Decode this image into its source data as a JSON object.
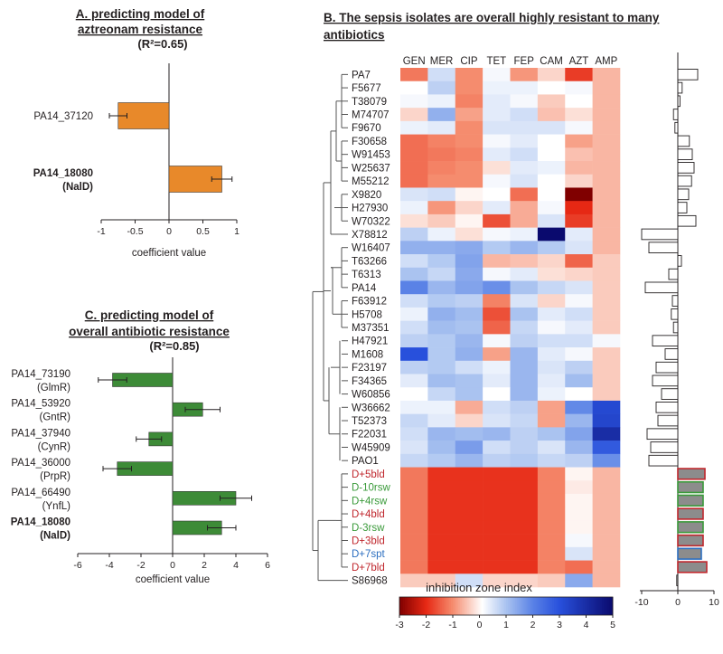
{
  "panel_a": {
    "title_line1": "A. predicting model of",
    "title_line2": "aztreonam resistance",
    "r2": "(R²=0.65)",
    "xlabel": "coefficient value"
  },
  "panel_b": {
    "title_line1": "B. The sepsis isolates are overall highly resistant to many",
    "title_line2": "antibiotics",
    "legend_title": "inhibition zone index"
  },
  "panel_c": {
    "title_line1": "C. predicting model of",
    "title_line2": "overall antibiotic resistance",
    "r2": "(R²=0.85)",
    "xlabel": "coefficient value"
  },
  "chart_data": [
    {
      "id": "A",
      "type": "bar",
      "orientation": "horizontal",
      "title": "A. predicting model of aztreonam resistance (R²=0.65)",
      "xlabel": "coefficient value",
      "xlim": [
        -1,
        1
      ],
      "xticks": [
        "-1",
        "-0.5",
        "0",
        "0.5",
        "1"
      ],
      "bar_color": "#e8892a",
      "categories": [
        {
          "name": "PA14_37120",
          "protein": "",
          "bold": false
        },
        {
          "name": "PA14_18080",
          "protein": "(NalD)",
          "bold": true
        }
      ],
      "values": [
        -0.75,
        0.78
      ],
      "errors": [
        0.13,
        0.15
      ]
    },
    {
      "id": "C",
      "type": "bar",
      "orientation": "horizontal",
      "title": "C. predicting model of overall antibiotic resistance (R²=0.85)",
      "xlabel": "coefficient value",
      "xlim": [
        -6,
        6
      ],
      "xticks": [
        "-6",
        "-4",
        "-2",
        "0",
        "2",
        "4",
        "6"
      ],
      "bar_color": "#3d8b37",
      "categories": [
        {
          "name": "PA14_73190",
          "protein": "(GlmR)",
          "bold": false
        },
        {
          "name": "PA14_53920",
          "protein": "(GntR)",
          "bold": false
        },
        {
          "name": "PA14_37940",
          "protein": "(CynR)",
          "bold": false
        },
        {
          "name": "PA14_36000",
          "protein": "(PrpR)",
          "bold": false
        },
        {
          "name": "PA14_66490",
          "protein": "(YnfL)",
          "bold": false
        },
        {
          "name": "PA14_18080",
          "protein": "(NalD)",
          "bold": true
        }
      ],
      "values": [
        -3.8,
        1.9,
        -1.5,
        -3.5,
        4.0,
        3.1
      ],
      "errors": [
        0.9,
        1.1,
        0.8,
        0.9,
        1.0,
        0.9
      ]
    },
    {
      "id": "B",
      "type": "heatmap",
      "title": "B. The sepsis isolates are overall highly resistant to many antibiotics",
      "columns": [
        "GEN",
        "MER",
        "CIP",
        "TET",
        "FEP",
        "CAM",
        "AZT",
        "AMP"
      ],
      "color_scale": {
        "title": "inhibition zone index",
        "min": -3,
        "max": 5,
        "ticks": [
          "-3",
          "-2",
          "-1",
          "0",
          "1",
          "2",
          "3",
          "4",
          "5"
        ]
      },
      "rows": [
        {
          "name": "PA7",
          "color": "#231f20",
          "values": [
            -1.2,
            0.6,
            -1.0,
            0.2,
            -0.9,
            -0.3,
            -1.8,
            -0.6
          ],
          "bar": 5.5
        },
        {
          "name": "F5677",
          "color": "#231f20",
          "values": [
            0.1,
            0.8,
            -1.0,
            0.3,
            0.3,
            0.1,
            0.2,
            -0.6
          ],
          "bar": 1.2
        },
        {
          "name": "T38079",
          "color": "#231f20",
          "values": [
            0.2,
            0.3,
            -1.1,
            0.4,
            0.2,
            -0.4,
            0.1,
            -0.6
          ],
          "bar": 0.6
        },
        {
          "name": "M74707",
          "color": "#231f20",
          "values": [
            -0.3,
            1.3,
            -0.8,
            0.4,
            0.6,
            -0.5,
            -0.2,
            -0.6
          ],
          "bar": -1.2
        },
        {
          "name": "F9670",
          "color": "#231f20",
          "values": [
            0.3,
            0.4,
            -1.0,
            0.5,
            0.5,
            0.5,
            0.2,
            -0.6
          ],
          "bar": -0.8
        },
        {
          "name": "F30658",
          "color": "#231f20",
          "values": [
            -1.3,
            -1.1,
            -1.0,
            0.2,
            0.4,
            0.1,
            -0.8,
            -0.6
          ],
          "bar": 3.2
        },
        {
          "name": "W91453",
          "color": "#231f20",
          "values": [
            -1.3,
            -1.2,
            -1.1,
            0.4,
            0.6,
            0.1,
            -0.5,
            -0.6
          ],
          "bar": 4.0
        },
        {
          "name": "W25637",
          "color": "#231f20",
          "values": [
            -1.3,
            -1.1,
            -1.0,
            -0.2,
            0.4,
            0.3,
            -0.6,
            -0.6
          ],
          "bar": 4.5
        },
        {
          "name": "M55212",
          "color": "#231f20",
          "values": [
            -1.3,
            -1.0,
            -1.0,
            0.2,
            0.5,
            0.1,
            -0.3,
            -0.6
          ],
          "bar": 3.8
        },
        {
          "name": "X9820",
          "color": "#231f20",
          "values": [
            0.5,
            0.6,
            0.0,
            0.1,
            -1.3,
            0.1,
            -3.0,
            -0.6
          ],
          "bar": 3.0
        },
        {
          "name": "H27930",
          "color": "#231f20",
          "values": [
            0.3,
            -0.9,
            -0.3,
            0.4,
            -0.7,
            0.2,
            -2.0,
            -0.6
          ],
          "bar": 2.5
        },
        {
          "name": "W70322",
          "color": "#231f20",
          "values": [
            -0.2,
            -0.4,
            0.0,
            -1.6,
            -0.7,
            0.5,
            -1.8,
            -0.6
          ],
          "bar": 5.0
        },
        {
          "name": "X78812",
          "color": "#231f20",
          "values": [
            0.8,
            0.3,
            -0.2,
            0.2,
            0.3,
            5.0,
            0.4,
            -0.6
          ],
          "bar": -10.0
        },
        {
          "name": "W16407",
          "color": "#231f20",
          "values": [
            1.3,
            1.3,
            1.4,
            0.9,
            1.2,
            0.9,
            0.5,
            -0.6
          ],
          "bar": -8.0
        },
        {
          "name": "T63266",
          "color": "#231f20",
          "values": [
            0.6,
            0.9,
            1.5,
            -0.6,
            -0.5,
            -0.3,
            -1.4,
            -0.4
          ],
          "bar": 1.0
        },
        {
          "name": "T6313",
          "color": "#231f20",
          "values": [
            1.0,
            0.7,
            1.4,
            0.2,
            0.4,
            -0.2,
            -0.3,
            -0.4
          ],
          "bar": -2.5
        },
        {
          "name": "PA14",
          "color": "#231f20",
          "values": [
            2.0,
            1.2,
            1.5,
            1.8,
            1.0,
            0.7,
            0.5,
            -0.4
          ],
          "bar": -9.0
        },
        {
          "name": "F63912",
          "color": "#231f20",
          "values": [
            0.6,
            0.9,
            0.8,
            -1.1,
            0.5,
            -0.3,
            0.2,
            -0.4
          ],
          "bar": -1.5
        },
        {
          "name": "H5708",
          "color": "#231f20",
          "values": [
            0.3,
            1.3,
            1.1,
            -1.6,
            1.0,
            0.4,
            0.6,
            -0.4
          ],
          "bar": -1.8
        },
        {
          "name": "M37351",
          "color": "#231f20",
          "values": [
            0.6,
            1.1,
            1.0,
            -1.4,
            0.7,
            0.2,
            0.4,
            -0.4
          ],
          "bar": -1.2
        },
        {
          "name": "H47921",
          "color": "#231f20",
          "values": [
            0.8,
            0.9,
            1.2,
            0.2,
            0.8,
            0.6,
            0.6,
            0.2
          ],
          "bar": -7.0
        },
        {
          "name": "M1608",
          "color": "#231f20",
          "values": [
            3.0,
            0.9,
            1.3,
            -0.8,
            1.2,
            0.4,
            0.2,
            -0.4
          ],
          "bar": -3.5
        },
        {
          "name": "F23197",
          "color": "#231f20",
          "values": [
            0.8,
            0.9,
            0.6,
            0.3,
            1.2,
            0.5,
            0.8,
            -0.4
          ],
          "bar": -6.0
        },
        {
          "name": "F34365",
          "color": "#231f20",
          "values": [
            0.4,
            1.1,
            1.0,
            0.4,
            1.2,
            0.4,
            1.1,
            -0.4
          ],
          "bar": -7.0
        },
        {
          "name": "W60856",
          "color": "#231f20",
          "values": [
            0.1,
            0.7,
            1.0,
            0.1,
            1.2,
            0.3,
            0.1,
            -0.4
          ],
          "bar": -4.5
        },
        {
          "name": "W36662",
          "color": "#231f20",
          "values": [
            0.3,
            0.3,
            -0.7,
            0.6,
            0.8,
            -0.8,
            1.9,
            3.2
          ],
          "bar": -6.0
        },
        {
          "name": "T52373",
          "color": "#231f20",
          "values": [
            0.7,
            0.4,
            -0.3,
            0.5,
            0.7,
            -0.8,
            1.2,
            3.3
          ],
          "bar": -5.5
        },
        {
          "name": "F22031",
          "color": "#231f20",
          "values": [
            0.6,
            1.2,
            1.1,
            1.2,
            0.8,
            1.0,
            1.5,
            4.0
          ],
          "bar": -8.5
        },
        {
          "name": "W45909",
          "color": "#231f20",
          "values": [
            0.5,
            1.1,
            1.6,
            0.6,
            0.8,
            0.5,
            1.2,
            2.8
          ],
          "bar": -7.5
        },
        {
          "name": "PAO1",
          "color": "#231f20",
          "values": [
            0.7,
            0.9,
            1.2,
            0.8,
            0.9,
            0.7,
            0.8,
            1.8
          ],
          "bar": -8.0
        },
        {
          "name": "D+5bld",
          "color": "#c0272d",
          "values": [
            -1.2,
            -1.9,
            -1.9,
            -1.9,
            -1.9,
            -1.1,
            0.0,
            -0.6
          ],
          "bar": 7.5
        },
        {
          "name": "D-10rsw",
          "color": "#3a9a3a",
          "values": [
            -1.2,
            -1.9,
            -1.9,
            -1.9,
            -1.9,
            -1.1,
            -0.1,
            -0.6
          ],
          "bar": 7.0
        },
        {
          "name": "D+4rsw",
          "color": "#3a9a3a",
          "values": [
            -1.2,
            -1.9,
            -1.9,
            -1.9,
            -1.9,
            -1.1,
            0.0,
            -0.6
          ],
          "bar": 7.0
        },
        {
          "name": "D+4bld",
          "color": "#c0272d",
          "values": [
            -1.2,
            -1.9,
            -1.9,
            -1.9,
            -1.9,
            -1.1,
            0.0,
            -0.6
          ],
          "bar": 7.0
        },
        {
          "name": "D-3rsw",
          "color": "#3a9a3a",
          "values": [
            -1.2,
            -1.9,
            -1.9,
            -1.9,
            -1.9,
            -1.1,
            0.0,
            -0.6
          ],
          "bar": 7.0
        },
        {
          "name": "D+3bld",
          "color": "#c0272d",
          "values": [
            -1.2,
            -1.9,
            -1.9,
            -1.9,
            -1.9,
            -1.1,
            0.2,
            -0.6
          ],
          "bar": 7.0
        },
        {
          "name": "D+7spt",
          "color": "#2d6fc0",
          "values": [
            -1.2,
            -1.9,
            -1.9,
            -1.9,
            -1.9,
            -1.1,
            0.5,
            -0.6
          ],
          "bar": 6.5
        },
        {
          "name": "D+7bld",
          "color": "#c0272d",
          "values": [
            -1.2,
            -1.9,
            -1.9,
            -1.9,
            -1.9,
            -1.1,
            -1.3,
            -0.6
          ],
          "bar": 8.0
        },
        {
          "name": "S86968",
          "color": "#231f20",
          "values": [
            -0.4,
            -0.4,
            0.6,
            -0.3,
            -0.3,
            -0.4,
            1.4,
            -0.6
          ],
          "bar": -0.3
        }
      ],
      "side_bar": {
        "xlim": [
          -14,
          10
        ],
        "xticks": [
          "-10",
          "0",
          "10"
        ]
      }
    }
  ]
}
